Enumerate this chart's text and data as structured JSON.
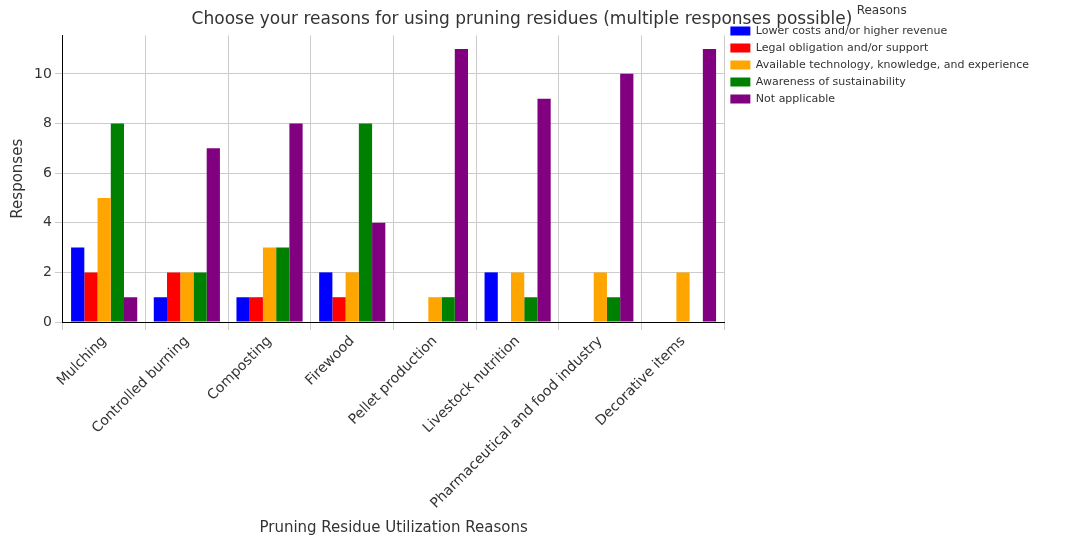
{
  "chart_data": {
    "type": "bar",
    "title": "Choose your reasons for using pruning residues (multiple responses possible)",
    "xlabel": "Pruning Residue Utilization Reasons",
    "ylabel": "Responses",
    "legend_title": "Reasons",
    "categories": [
      "Mulching",
      "Controlled burning",
      "Composting",
      "Firewood",
      "Pellet production",
      "Livestock nutrition",
      "Pharmaceutical and food industry",
      "Decorative items"
    ],
    "series": [
      {
        "name": "Lower costs and/or higher revenue",
        "color": "#0000ff",
        "values": [
          3,
          1,
          1,
          2,
          0,
          2,
          0,
          0
        ]
      },
      {
        "name": "Legal obligation and/or support",
        "color": "#ff0000",
        "values": [
          2,
          2,
          1,
          1,
          0,
          0,
          0,
          0
        ]
      },
      {
        "name": "Available technology, knowledge, and experience",
        "color": "#ffa500",
        "values": [
          5,
          2,
          3,
          2,
          1,
          2,
          2,
          2
        ]
      },
      {
        "name": "Awareness of sustainability",
        "color": "#008000",
        "values": [
          8,
          2,
          3,
          8,
          1,
          1,
          1,
          0
        ]
      },
      {
        "name": "Not applicable",
        "color": "#800080",
        "values": [
          1,
          7,
          8,
          4,
          11,
          9,
          10,
          11
        ]
      }
    ],
    "ylim": [
      0,
      11.55
    ],
    "yticks": [
      0,
      2,
      4,
      6,
      8,
      10
    ],
    "grid": true,
    "legend": "top right"
  }
}
